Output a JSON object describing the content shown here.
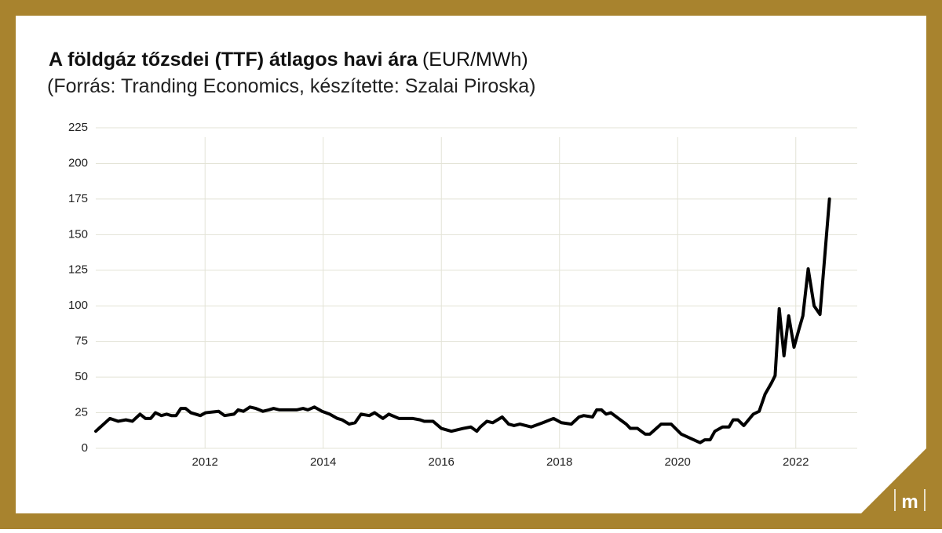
{
  "chart_data": {
    "type": "line",
    "title": "A földgáz tőzsdei (TTF) átlagos havi ára",
    "title_unit": "(EUR/MWh)",
    "subtitle": "(Forrás: Tranding Economics, készítette: Szalai Piroska)",
    "logo": "m",
    "x": [
      2010.15,
      2010.39,
      2010.53,
      2010.66,
      2010.77,
      2010.9,
      2010.99,
      2011.08,
      2011.16,
      2011.26,
      2011.35,
      2011.43,
      2011.51,
      2011.59,
      2011.67,
      2011.76,
      2011.92,
      2012.01,
      2012.23,
      2012.33,
      2012.49,
      2012.56,
      2012.65,
      2012.76,
      2012.86,
      2012.98,
      2013.08,
      2013.16,
      2013.26,
      2013.55,
      2013.66,
      2013.74,
      2013.85,
      2013.98,
      2014.11,
      2014.24,
      2014.32,
      2014.44,
      2014.54,
      2014.64,
      2014.78,
      2014.87,
      2015.01,
      2015.11,
      2015.28,
      2015.51,
      2015.64,
      2015.71,
      2015.86,
      2016.0,
      2016.17,
      2016.37,
      2016.5,
      2016.6,
      2016.66,
      2016.77,
      2016.87,
      2017.03,
      2017.14,
      2017.23,
      2017.33,
      2017.52,
      2017.72,
      2017.9,
      2018.03,
      2018.2,
      2018.33,
      2018.41,
      2018.56,
      2018.63,
      2018.71,
      2018.79,
      2018.87,
      2019.03,
      2019.13,
      2019.2,
      2019.32,
      2019.45,
      2019.53,
      2019.72,
      2019.89,
      2020.06,
      2020.22,
      2020.38,
      2020.46,
      2020.55,
      2020.63,
      2020.76,
      2020.87,
      2020.94,
      2021.02,
      2021.12,
      2021.28,
      2021.38,
      2021.48,
      2021.59,
      2021.65,
      2021.72,
      2021.8,
      2021.88,
      2021.97,
      2022.05,
      2022.12,
      2022.21,
      2022.31,
      2022.41,
      2022.57
    ],
    "series": [
      {
        "name": "TTF",
        "color": "#000000",
        "values": [
          12,
          21,
          19,
          20,
          19,
          24,
          21,
          21,
          25,
          23,
          24,
          23,
          23,
          28,
          28,
          25,
          23,
          25,
          26,
          23,
          24,
          27,
          26,
          29,
          28,
          26,
          27,
          28,
          27,
          27,
          28,
          27,
          29,
          26,
          24,
          21,
          20,
          17,
          18,
          24,
          23,
          25,
          21,
          24,
          21,
          21,
          20,
          19,
          19,
          14,
          12,
          14,
          15,
          12,
          15,
          19,
          18,
          22,
          17,
          16,
          17,
          15,
          18,
          21,
          18,
          17,
          22,
          23,
          22,
          27,
          27,
          24,
          25,
          20,
          17,
          14,
          14,
          10,
          10,
          17,
          17,
          10,
          7,
          4,
          6,
          6,
          12,
          15,
          15,
          20,
          20,
          16,
          24,
          26,
          38,
          46,
          51,
          98,
          65,
          93,
          71,
          83,
          93,
          126,
          100,
          94,
          175
        ]
      }
    ],
    "xlim": [
      2010.15,
      2023.04
    ],
    "xticks": [
      2012,
      2014,
      2016,
      2018,
      2020,
      2022
    ],
    "ylim": [
      0,
      225
    ],
    "yticks": [
      0,
      25,
      50,
      75,
      100,
      125,
      150,
      175,
      200,
      225
    ],
    "grid": true
  }
}
